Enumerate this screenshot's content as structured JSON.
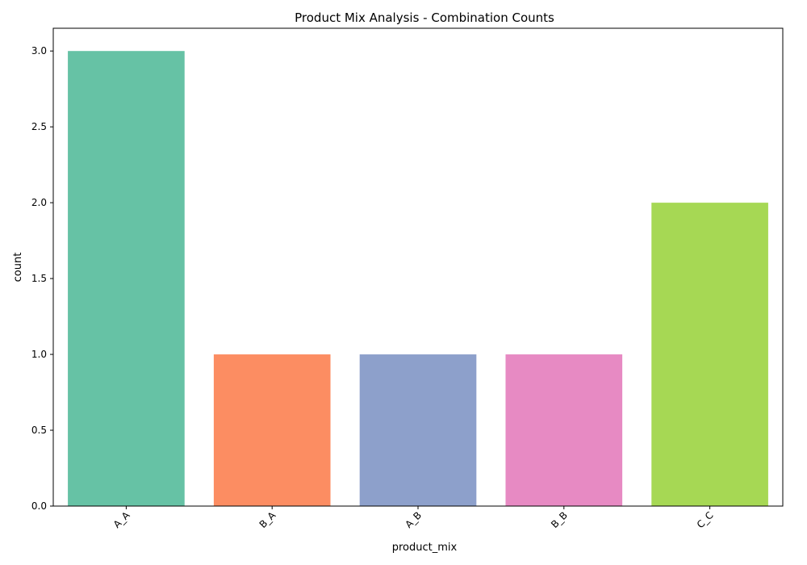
{
  "chart_data": {
    "type": "bar",
    "title": "Product Mix Analysis - Combination Counts",
    "xlabel": "product_mix",
    "ylabel": "count",
    "categories": [
      "A_A",
      "B_A",
      "A_B",
      "B_B",
      "C_C"
    ],
    "values": [
      3,
      1,
      1,
      1,
      2
    ],
    "colors": [
      "#66c2a5",
      "#fc8d62",
      "#8da0cb",
      "#e78ac3",
      "#a6d854"
    ],
    "ylim": [
      0,
      3.15
    ],
    "yticks": [
      0.0,
      0.5,
      1.0,
      1.5,
      2.0,
      2.5,
      3.0
    ],
    "ytick_labels": [
      "0.0",
      "0.5",
      "1.0",
      "1.5",
      "2.0",
      "2.5",
      "3.0"
    ],
    "xtick_rotation": 45,
    "grid": false,
    "legend": "none"
  }
}
